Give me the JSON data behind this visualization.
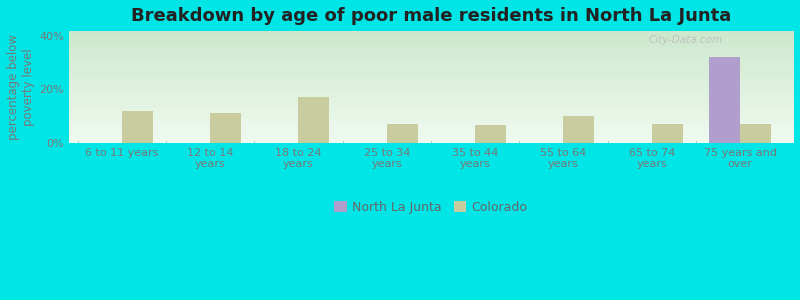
{
  "title": "Breakdown by age of poor male residents in North La Junta",
  "ylabel": "percentage below\npoverty level",
  "categories": [
    "6 to 11 years",
    "12 to 14\nyears",
    "18 to 24\nyears",
    "25 to 34\nyears",
    "35 to 44\nyears",
    "55 to 64\nyears",
    "65 to 74\nyears",
    "75 years and\nover"
  ],
  "north_la_junta": [
    0,
    0,
    0,
    0,
    0,
    0,
    0,
    32
  ],
  "colorado": [
    12,
    11,
    17,
    7,
    6.5,
    10,
    7,
    7
  ],
  "north_la_junta_color": "#b09fcc",
  "colorado_color": "#c8cc9f",
  "bg_outer": "#00e5e5",
  "plot_bg_top": "#cce8cc",
  "plot_bg_bottom": "#f0faf0",
  "ylim": [
    0,
    42
  ],
  "yticks": [
    0,
    20,
    40
  ],
  "ytick_labels": [
    "0%",
    "20%",
    "40%"
  ],
  "title_fontsize": 13,
  "axis_label_fontsize": 8.5,
  "tick_fontsize": 8,
  "legend_labels": [
    "North La Junta",
    "Colorado"
  ],
  "bar_width": 0.35
}
